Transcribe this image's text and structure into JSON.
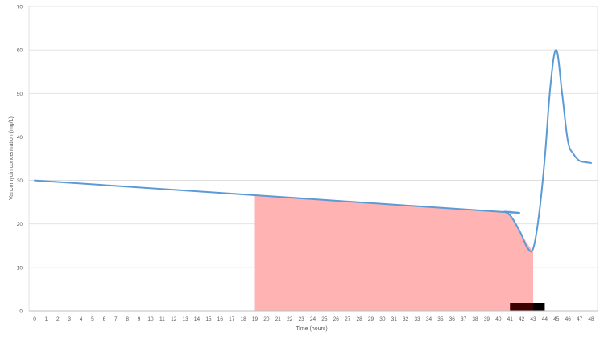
{
  "chart_data": {
    "type": "line",
    "xlabel": "Time (hours)",
    "ylabel": "Vancomycin concentration (mg/L)",
    "xlim": [
      0,
      48
    ],
    "ylim": [
      0,
      70
    ],
    "x_ticks": [
      0,
      1,
      2,
      3,
      4,
      5,
      6,
      7,
      8,
      9,
      10,
      11,
      12,
      13,
      14,
      15,
      16,
      17,
      18,
      19,
      20,
      21,
      22,
      23,
      24,
      25,
      26,
      27,
      28,
      29,
      30,
      31,
      32,
      33,
      34,
      35,
      36,
      37,
      38,
      39,
      40,
      41,
      42,
      43,
      44,
      45,
      46,
      47,
      48
    ],
    "y_ticks": [
      0,
      10,
      20,
      30,
      40,
      50,
      60,
      70
    ],
    "grid": "horizontal",
    "series": [
      {
        "color": "#5b9bd5",
        "x": [
          0,
          19,
          40,
          40.5,
          41,
          41.5,
          42,
          42.5,
          43,
          43.5,
          44,
          44.5,
          45,
          45.5,
          46,
          46.5,
          47,
          47.5,
          48
        ],
        "y": [
          30,
          26.6,
          22.8,
          22.8,
          22,
          20,
          17.5,
          14.5,
          14.3,
          22,
          35,
          52,
          60,
          50,
          39,
          36,
          34.5,
          34.2,
          34
        ]
      }
    ],
    "shaded_region": {
      "color": "#ffb3b3",
      "x": [
        19,
        40,
        40.5,
        41,
        41.5,
        42,
        42.5,
        43
      ],
      "y": [
        26.6,
        22.8,
        22.8,
        22,
        20,
        17.5,
        15.5,
        13.5
      ]
    },
    "infusion_bars": [
      {
        "x_start": 41,
        "x_end": 43,
        "color": "#3d0000"
      },
      {
        "x_start": 43,
        "x_end": 44,
        "color": "#000000"
      }
    ]
  }
}
